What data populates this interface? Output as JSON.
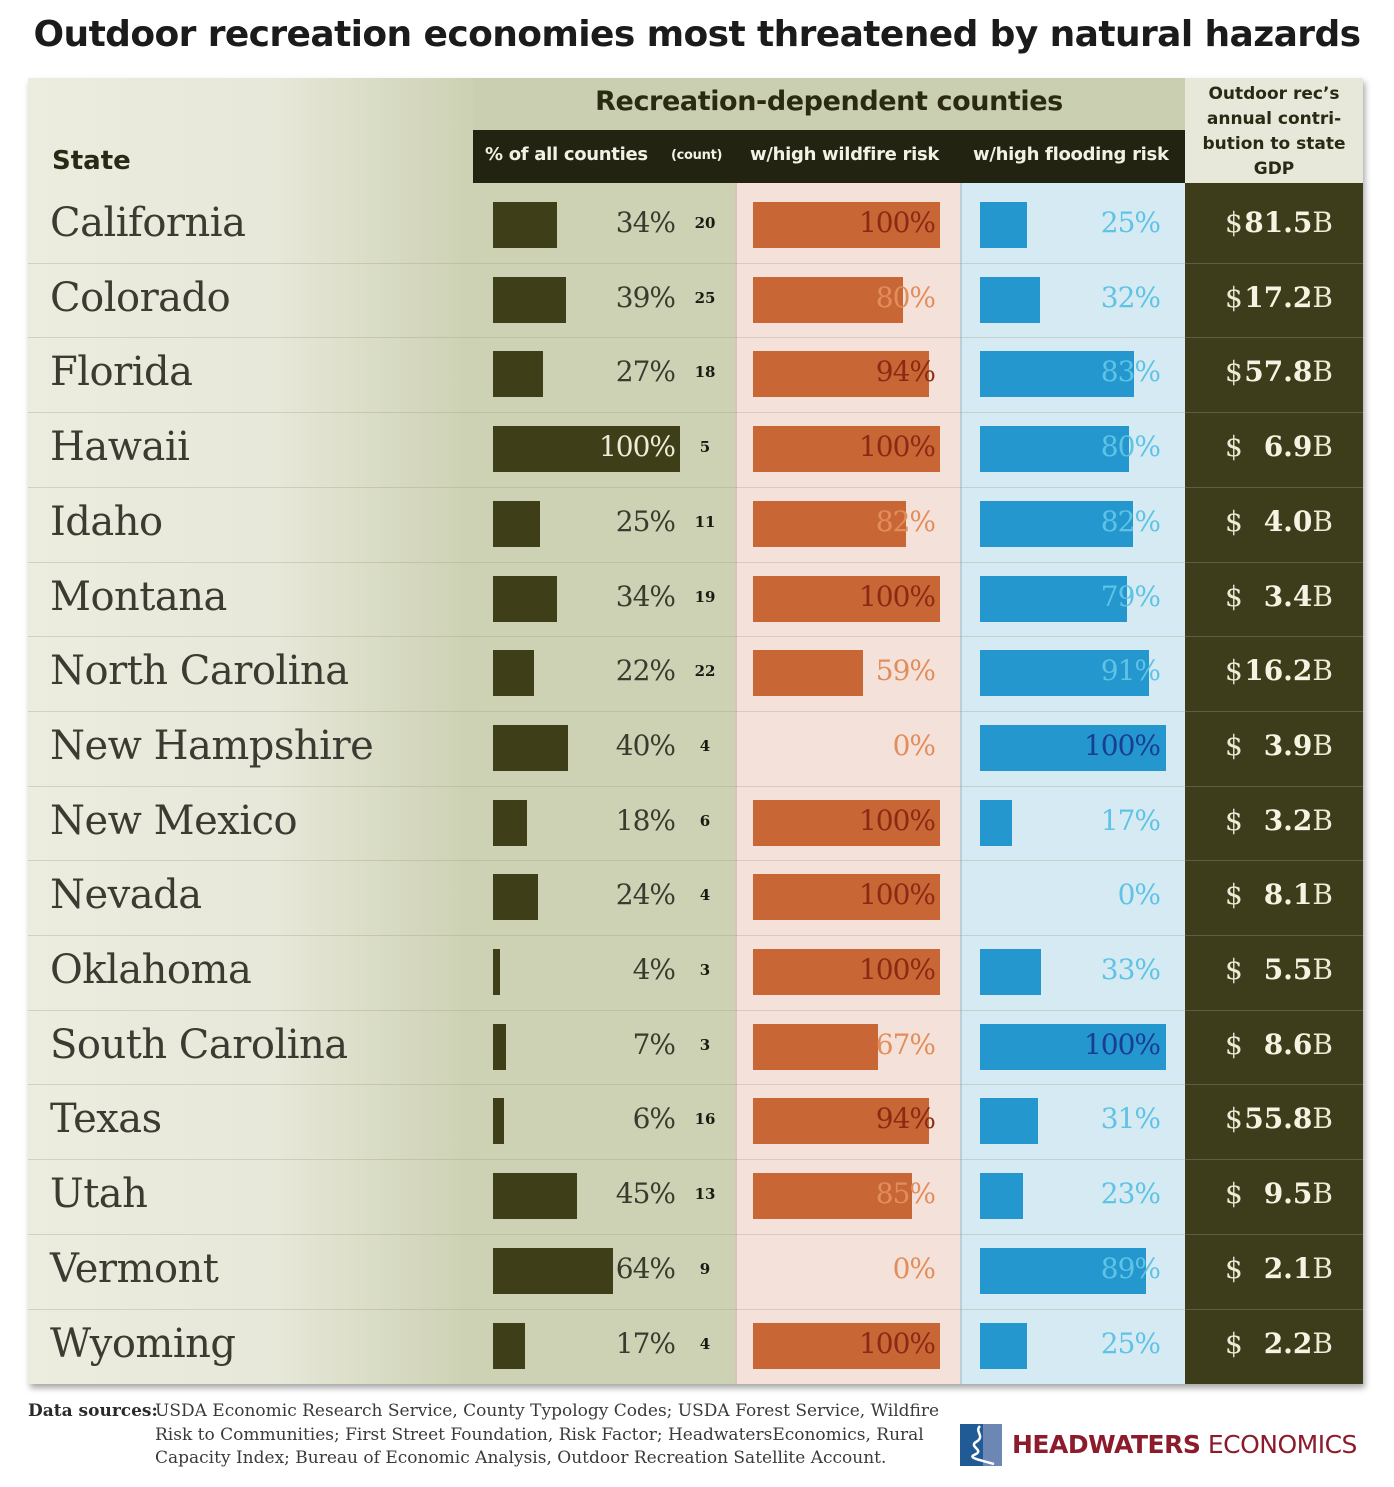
{
  "title": "Outdoor recreation economies most threatened by natural hazards",
  "header": {
    "state": "State",
    "group": "Recreation-dependent counties",
    "pct_all": "% of all counties",
    "count": "(count)",
    "wildfire": "w/high wildfire risk",
    "flooding": "w/high flooding risk",
    "gdp_line1": "Outdoor rec’s",
    "gdp_line2": "annual contri-",
    "gdp_line3": "bution to state",
    "gdp_line4": "GDP"
  },
  "colors": {
    "pct_bar": "#3e3f19",
    "wildfire_bar": "#c96636",
    "flood_bar": "#2597cf",
    "gdp_bg": "#3d3d1c"
  },
  "chart_data": {
    "type": "table",
    "title": "Outdoor recreation economies most threatened by natural hazards",
    "columns": [
      "State",
      "% of all counties",
      "(count)",
      "w/high wildfire risk",
      "w/high flooding risk",
      "Outdoor rec's annual contribution to state GDP"
    ],
    "units": {
      "pct_all": "%",
      "wildfire": "%",
      "flooding": "%",
      "gdp": "billion USD"
    },
    "rows": [
      {
        "state": "California",
        "pct": 34,
        "count": 20,
        "wildfire": 100,
        "flood": 25,
        "gdp": "81.5"
      },
      {
        "state": "Colorado",
        "pct": 39,
        "count": 25,
        "wildfire": 80,
        "flood": 32,
        "gdp": "17.2"
      },
      {
        "state": "Florida",
        "pct": 27,
        "count": 18,
        "wildfire": 94,
        "flood": 83,
        "gdp": "57.8"
      },
      {
        "state": "Hawaii",
        "pct": 100,
        "count": 5,
        "wildfire": 100,
        "flood": 80,
        "gdp": "6.9"
      },
      {
        "state": "Idaho",
        "pct": 25,
        "count": 11,
        "wildfire": 82,
        "flood": 82,
        "gdp": "4.0"
      },
      {
        "state": "Montana",
        "pct": 34,
        "count": 19,
        "wildfire": 100,
        "flood": 79,
        "gdp": "3.4"
      },
      {
        "state": "North Carolina",
        "pct": 22,
        "count": 22,
        "wildfire": 59,
        "flood": 91,
        "gdp": "16.2"
      },
      {
        "state": "New Hampshire",
        "pct": 40,
        "count": 4,
        "wildfire": 0,
        "flood": 100,
        "gdp": "3.9"
      },
      {
        "state": "New Mexico",
        "pct": 18,
        "count": 6,
        "wildfire": 100,
        "flood": 17,
        "gdp": "3.2"
      },
      {
        "state": "Nevada",
        "pct": 24,
        "count": 4,
        "wildfire": 100,
        "flood": 0,
        "gdp": "8.1"
      },
      {
        "state": "Oklahoma",
        "pct": 4,
        "count": 3,
        "wildfire": 100,
        "flood": 33,
        "gdp": "5.5"
      },
      {
        "state": "South Carolina",
        "pct": 7,
        "count": 3,
        "wildfire": 67,
        "flood": 100,
        "gdp": "8.6"
      },
      {
        "state": "Texas",
        "pct": 6,
        "count": 16,
        "wildfire": 94,
        "flood": 31,
        "gdp": "55.8"
      },
      {
        "state": "Utah",
        "pct": 45,
        "count": 13,
        "wildfire": 85,
        "flood": 23,
        "gdp": "9.5"
      },
      {
        "state": "Vermont",
        "pct": 64,
        "count": 9,
        "wildfire": 0,
        "flood": 89,
        "gdp": "2.1"
      },
      {
        "state": "Wyoming",
        "pct": 17,
        "count": 4,
        "wildfire": 100,
        "flood": 25,
        "gdp": "2.2"
      }
    ]
  },
  "footer": {
    "label": "Data sources:",
    "text": "USDA Economic Research Service, County Typology Codes; USDA Forest Service, Wildfire Risk to Communities; First Street Foundation, Risk Factor; HeadwatersEconomics, Rural Capacity Index; Bureau of Economic Analysis, Outdoor Recreation Satellite Account."
  },
  "logo": {
    "bold": "HEADWATERS",
    "light": "ECONOMICS"
  },
  "labels": {
    "dollar": "$",
    "billion": "B",
    "percent": "%"
  }
}
